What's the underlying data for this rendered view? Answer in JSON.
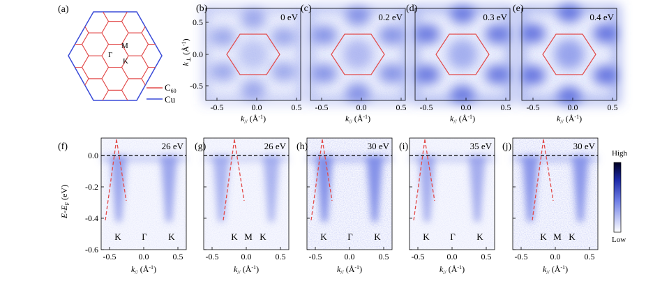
{
  "panel_letters": [
    "(a)",
    "(b)",
    "(c)",
    "(d)",
    "(e)",
    "(f)",
    "(g)",
    "(h)",
    "(i)",
    "(j)"
  ],
  "bz": {
    "gamma": "Γ",
    "m": "M",
    "k": "K",
    "legend": [
      {
        "label": "C60",
        "sub": "60",
        "base": "C",
        "color": "#e24a4a"
      },
      {
        "label": "Cu",
        "color": "#3a4bd8"
      }
    ]
  },
  "top_row": {
    "energies": [
      "0 eV",
      "0.2 eV",
      "0.3 eV",
      "0.4 eV"
    ],
    "y_label": "k⊥ (Å⁻¹)",
    "x_label": "k// (Å⁻¹)",
    "ticks": [
      "-0.5",
      "0.0",
      "0.5"
    ],
    "y_ticks": [
      "0.5",
      "0.0",
      "-0.5"
    ]
  },
  "bottom_row": {
    "photon_energies": [
      "26 eV",
      "26 eV",
      "30 eV",
      "35 eV",
      "30 eV"
    ],
    "point_labels": [
      [
        "K",
        "Γ",
        "K"
      ],
      [
        "K",
        "M",
        "K"
      ],
      [
        "K",
        "Γ",
        "K"
      ],
      [
        "K",
        "Γ",
        "K"
      ],
      [
        "K",
        "M",
        "K"
      ]
    ],
    "y_label": "E-EF (eV)",
    "x_label": "k// (Å⁻¹)",
    "y_ticks": [
      "0.0",
      "-0.2",
      "-0.4",
      "-0.6"
    ],
    "x_ticks": [
      "-0.5",
      "0.0",
      "0.5"
    ]
  },
  "colorbar": {
    "high": "High",
    "low": "Low"
  },
  "colors": {
    "cu": "#3a4bd8",
    "c60": "#e24a4a",
    "map": "#3b4fd6"
  }
}
